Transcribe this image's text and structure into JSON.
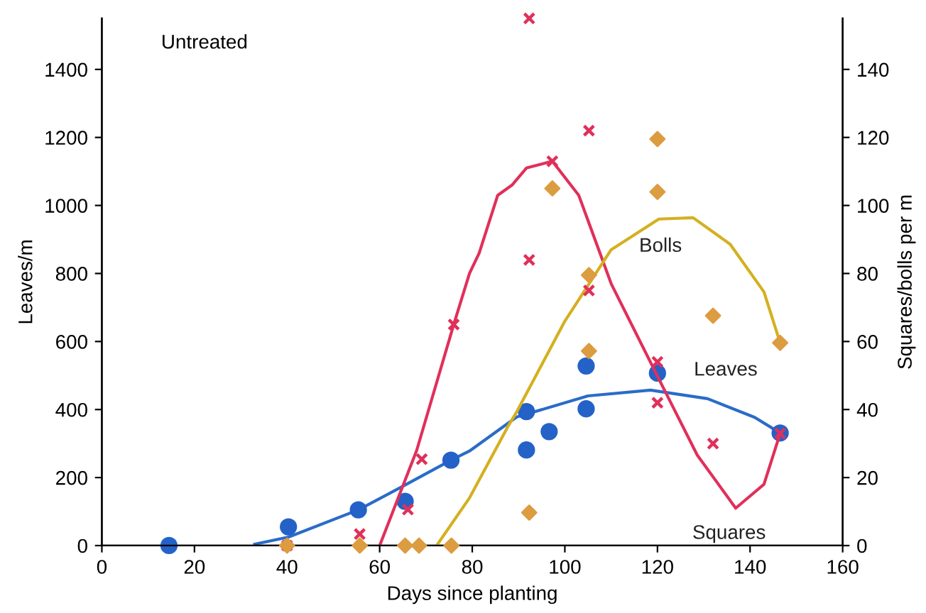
{
  "chart_data": {
    "type": "scatter",
    "xlabel": "Days since planting",
    "ylabel": "Leaves/m",
    "y2label": "Squares/bolls per m",
    "annotations": [
      "Untreated"
    ],
    "xlim": [
      0,
      160
    ],
    "xticks": [
      0,
      20,
      40,
      60,
      80,
      100,
      120,
      140,
      160
    ],
    "ylim": [
      0,
      1550
    ],
    "yticks": [
      0,
      200,
      400,
      600,
      800,
      1000,
      1200,
      1400
    ],
    "y2lim": [
      0,
      155
    ],
    "y2ticks": [
      0,
      20,
      40,
      60,
      80,
      100,
      120,
      140
    ],
    "grid": false,
    "legend": false,
    "series": [
      {
        "color": "#2462c8",
        "marker": "circle",
        "x": [
          14.5,
          40.3,
          55.4,
          65.5,
          75.4,
          91.7,
          91.7,
          96.6,
          104.6,
          104.6,
          120,
          146.5
        ],
        "values": [
          0,
          55,
          105,
          130,
          251,
          394,
          281,
          335,
          528,
          402,
          507,
          331
        ]
      },
      {
        "axis": "y2",
        "color": "#e0305a",
        "marker": "cross",
        "x": [
          40,
          55.7,
          66.1,
          69.1,
          76,
          92.3,
          92.3,
          97.3,
          105.2,
          105.2,
          120,
          120,
          132,
          146.5
        ],
        "values": [
          0,
          3.4,
          10.6,
          25.4,
          65,
          155,
          84,
          113,
          122,
          75,
          54,
          42,
          30,
          33
        ]
      },
      {
        "axis": "y2",
        "color": "#dc9c40",
        "marker": "diamond",
        "x": [
          40,
          55.7,
          65.5,
          68.5,
          75.5,
          92.3,
          97.3,
          105.2,
          105.2,
          120,
          120,
          132,
          146.5
        ],
        "values": [
          0,
          0,
          0,
          0,
          0,
          9.7,
          105,
          79.5,
          57.2,
          119.5,
          104,
          67.6,
          59.6
        ]
      },
      {
        "type": "line",
        "name": "Leaves",
        "color": "#2a6cc8",
        "x": [
          33,
          40.3,
          55.4,
          64,
          75.4,
          79.4,
          89.6,
          105,
          118.5,
          130.8,
          141,
          146.5
        ],
        "values": [
          4,
          25,
          105,
          167,
          251,
          278,
          378,
          440,
          457,
          432,
          377,
          331
        ]
      },
      {
        "type": "line",
        "name": "Squares",
        "axis": "y2",
        "color": "#e0305a",
        "x": [
          60,
          68,
          76,
          79.4,
          81.5,
          85.5,
          88.6,
          91.7,
          97.3,
          103,
          110,
          120.3,
          128.6,
          136.9,
          143,
          146.5
        ],
        "values": [
          0,
          28,
          65,
          80,
          86,
          103,
          106,
          111,
          113,
          103,
          77,
          49,
          26.6,
          11,
          18,
          33
        ]
      },
      {
        "type": "line",
        "name": "Bolls",
        "axis": "y2",
        "color": "#d4b020",
        "x": [
          72.3,
          79.4,
          87.7,
          89.6,
          100,
          110,
          120.3,
          127.7,
          135.7,
          143,
          146.5
        ],
        "values": [
          0,
          14,
          35,
          39.3,
          66,
          87,
          96,
          96.4,
          88.6,
          74.6,
          59.6
        ]
      }
    ]
  }
}
